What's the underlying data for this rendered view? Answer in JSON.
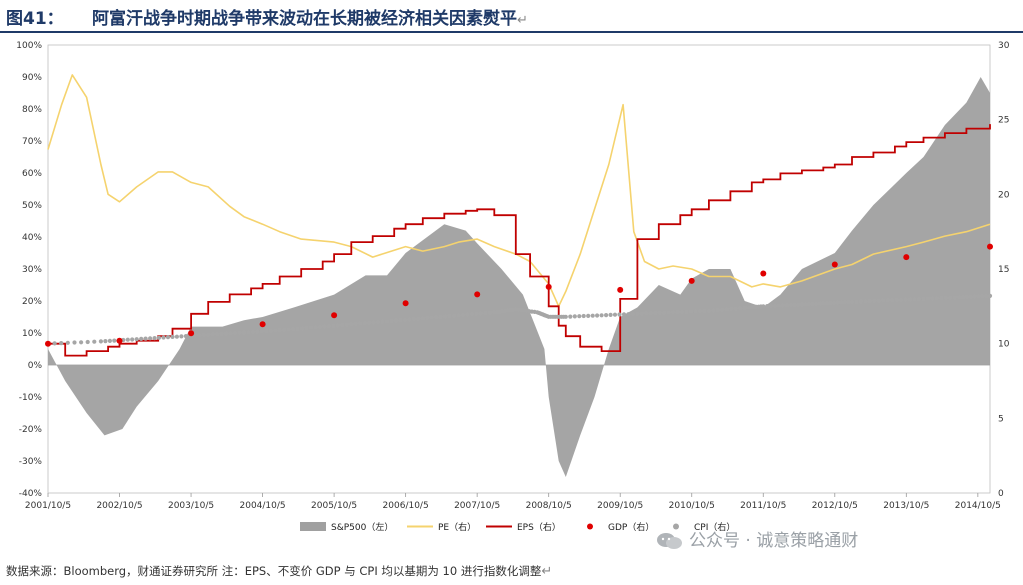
{
  "figure": {
    "number": "图41：",
    "title": "阿富汗战争时期战争带来波动在长期被经济相关因素熨平",
    "source": "数据来源：Bloomberg，财通证券研究所 注：EPS、不变价 GDP 与 CPI 均以基期为 10 进行指数化调整",
    "watermark": "公众号 · 诚意策略通财"
  },
  "colors": {
    "sp500": "#a0a0a0",
    "pe": "#f5d36e",
    "eps": "#c00000",
    "gdp": "#e00000",
    "cpi": "#a6a6a6",
    "title": "#1f3a68"
  },
  "chart_data": {
    "type": "area",
    "x_tick_labels": [
      "2001/10/5",
      "2002/10/5",
      "2003/10/5",
      "2004/10/5",
      "2005/10/5",
      "2006/10/5",
      "2007/10/5",
      "2008/10/5",
      "2009/10/5",
      "2010/10/5",
      "2011/10/5",
      "2012/10/5",
      "2013/10/5",
      "2014/10/5"
    ],
    "x_range": [
      2001.76,
      2014.93
    ],
    "y_left": {
      "ticks": [
        "100%",
        "90%",
        "80%",
        "70%",
        "60%",
        "50%",
        "40%",
        "30%",
        "20%",
        "10%",
        "0%",
        "-10%",
        "-20%",
        "-30%",
        "-40%"
      ],
      "range": [
        -40,
        100
      ]
    },
    "y_right": {
      "ticks": [
        "30",
        "25",
        "20",
        "15",
        "10",
        "5",
        "0"
      ],
      "range": [
        0,
        30
      ]
    },
    "legend": [
      {
        "key": "sp500",
        "label": "S&P500（左）",
        "marker": "area"
      },
      {
        "key": "pe",
        "label": "PE（右）",
        "marker": "line"
      },
      {
        "key": "eps",
        "label": "EPS（右）",
        "marker": "line"
      },
      {
        "key": "gdp",
        "label": "GDP（右）",
        "marker": "dot"
      },
      {
        "key": "cpi",
        "label": "CPI（右）",
        "marker": "dot"
      }
    ],
    "series": [
      {
        "key": "sp500",
        "axis": "left",
        "x": [
          2001.76,
          2002.0,
          2002.3,
          2002.55,
          2002.8,
          2003.0,
          2003.3,
          2003.6,
          2003.76,
          2004.2,
          2004.5,
          2004.76,
          2005.2,
          2005.76,
          2006.2,
          2006.5,
          2006.76,
          2007.3,
          2007.6,
          2007.76,
          2008.1,
          2008.4,
          2008.7,
          2008.76,
          2008.9,
          2009.0,
          2009.2,
          2009.4,
          2009.6,
          2009.76,
          2010.0,
          2010.3,
          2010.6,
          2010.76,
          2011.0,
          2011.3,
          2011.5,
          2011.76,
          2012.0,
          2012.3,
          2012.76,
          2013.0,
          2013.3,
          2013.76,
          2014.0,
          2014.3,
          2014.6,
          2014.8,
          2014.93
        ],
        "values": [
          5,
          -5,
          -15,
          -22,
          -20,
          -13,
          -5,
          5,
          12,
          12,
          14,
          15,
          18,
          22,
          28,
          28,
          35,
          44,
          42,
          38,
          30,
          22,
          5,
          -10,
          -30,
          -35,
          -22,
          -10,
          5,
          15,
          18,
          25,
          22,
          27,
          30,
          30,
          20,
          18,
          22,
          30,
          35,
          42,
          50,
          60,
          65,
          75,
          82,
          90,
          85
        ]
      },
      {
        "key": "pe",
        "axis": "right",
        "x": [
          2001.76,
          2001.95,
          2002.1,
          2002.3,
          2002.5,
          2002.6,
          2002.76,
          2003.0,
          2003.3,
          2003.5,
          2003.76,
          2004.0,
          2004.3,
          2004.5,
          2004.76,
          2005.0,
          2005.3,
          2005.76,
          2006.0,
          2006.3,
          2006.76,
          2007.0,
          2007.3,
          2007.5,
          2007.76,
          2008.0,
          2008.3,
          2008.5,
          2008.76,
          2008.9,
          2009.0,
          2009.2,
          2009.4,
          2009.6,
          2009.8,
          2009.95,
          2010.1,
          2010.3,
          2010.5,
          2010.76,
          2011.0,
          2011.3,
          2011.6,
          2011.76,
          2012.0,
          2012.3,
          2012.76,
          2013.0,
          2013.3,
          2013.76,
          2014.0,
          2014.3,
          2014.6,
          2014.93
        ],
        "values": [
          23,
          26,
          28,
          26.5,
          22,
          20,
          19.5,
          20.5,
          21.5,
          21.5,
          20.8,
          20.5,
          19.2,
          18.5,
          18,
          17.5,
          17,
          16.8,
          16.5,
          15.8,
          16.5,
          16.2,
          16.5,
          16.8,
          17,
          16.5,
          16,
          15.5,
          14,
          12.5,
          13.5,
          16,
          19,
          22,
          26,
          17.5,
          15.5,
          15,
          15.2,
          15,
          14.5,
          14.5,
          13.8,
          14,
          13.8,
          14.2,
          15,
          15.3,
          16,
          16.5,
          16.8,
          17.2,
          17.5,
          18
        ]
      },
      {
        "key": "eps",
        "axis": "right",
        "x": [
          2001.76,
          2002.0,
          2002.3,
          2002.6,
          2002.76,
          2003.0,
          2003.3,
          2003.5,
          2003.76,
          2004.0,
          2004.3,
          2004.6,
          2004.76,
          2005.0,
          2005.3,
          2005.6,
          2005.76,
          2006.0,
          2006.3,
          2006.6,
          2006.76,
          2007.0,
          2007.3,
          2007.6,
          2007.76,
          2008.0,
          2008.3,
          2008.5,
          2008.76,
          2008.9,
          2009.0,
          2009.2,
          2009.5,
          2009.76,
          2010.0,
          2010.3,
          2010.6,
          2010.76,
          2011.0,
          2011.3,
          2011.6,
          2011.76,
          2012.0,
          2012.3,
          2012.6,
          2012.76,
          2013.0,
          2013.3,
          2013.6,
          2013.76,
          2014.0,
          2014.3,
          2014.6,
          2014.93
        ],
        "values": [
          10,
          9.2,
          9.5,
          9.8,
          10,
          10.2,
          10.5,
          11,
          12,
          12.8,
          13.3,
          13.7,
          14,
          14.5,
          15,
          15.5,
          16,
          16.8,
          17.2,
          17.7,
          18,
          18.4,
          18.7,
          18.9,
          19,
          18.6,
          16,
          14.5,
          12.5,
          11.2,
          10.5,
          9.8,
          9.5,
          13,
          17,
          18,
          18.6,
          19,
          19.6,
          20.2,
          20.8,
          21,
          21.4,
          21.6,
          21.8,
          22,
          22.5,
          22.8,
          23.2,
          23.5,
          23.8,
          24.1,
          24.4,
          24.7
        ]
      },
      {
        "key": "gdp",
        "axis": "right",
        "x": [
          2001.76,
          2002.76,
          2003.76,
          2004.76,
          2005.76,
          2006.76,
          2007.76,
          2008.76,
          2009.76,
          2010.76,
          2011.76,
          2012.76,
          2013.76,
          2014.93
        ],
        "values": [
          10,
          10.2,
          10.7,
          11.3,
          11.9,
          12.7,
          13.3,
          13.8,
          13.6,
          14.2,
          14.7,
          15.3,
          15.8,
          16.5
        ]
      },
      {
        "key": "cpi",
        "axis": "right",
        "x": [
          2001.76,
          2002.5,
          2003.0,
          2003.5,
          2004.0,
          2004.5,
          2005.0,
          2005.5,
          2006.0,
          2006.5,
          2007.0,
          2007.5,
          2008.0,
          2008.3,
          2008.6,
          2008.76,
          2009.0,
          2009.5,
          2010.0,
          2010.5,
          2011.0,
          2011.5,
          2011.76,
          2012.2,
          2012.6,
          2013.0,
          2013.5,
          2014.0,
          2014.5,
          2014.93
        ],
        "values": [
          10,
          10.15,
          10.3,
          10.45,
          10.6,
          10.75,
          10.9,
          11.1,
          11.3,
          11.5,
          11.7,
          11.9,
          12.1,
          12.3,
          12.1,
          11.8,
          11.8,
          11.9,
          12.0,
          12.1,
          12.2,
          12.4,
          12.5,
          12.6,
          12.7,
          12.8,
          12.9,
          13.0,
          13.1,
          13.2
        ]
      }
    ]
  }
}
